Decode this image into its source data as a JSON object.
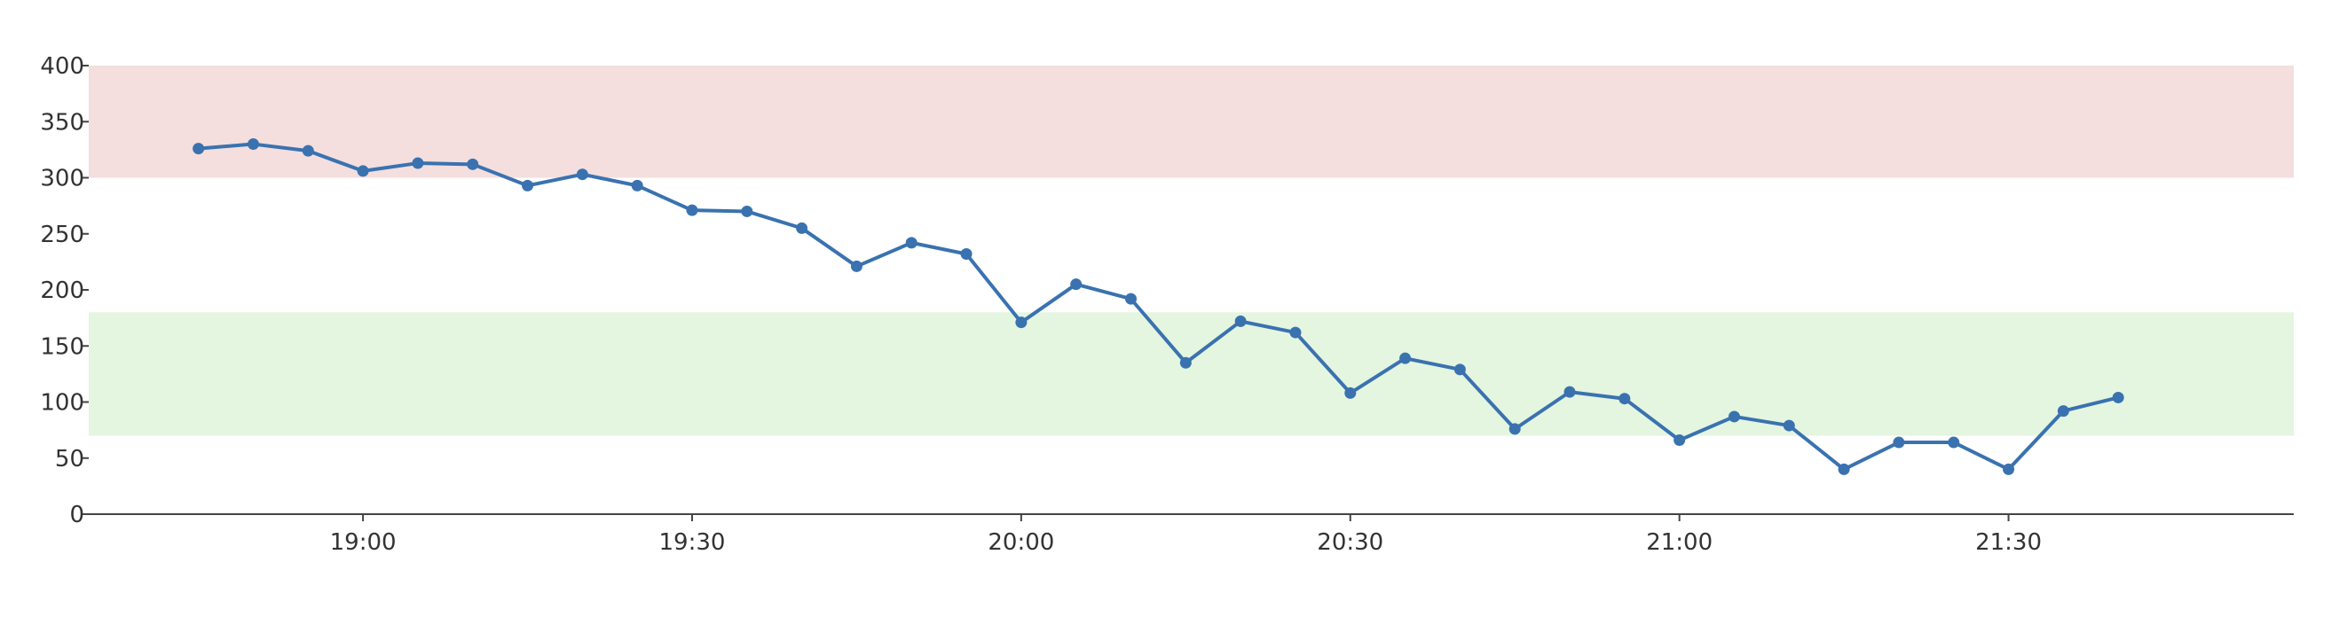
{
  "chart_data": {
    "type": "line",
    "title": "",
    "xlabel": "",
    "ylabel": "",
    "ylim": [
      0,
      400
    ],
    "y_ticks": [
      0,
      50,
      100,
      150,
      200,
      250,
      300,
      350,
      400
    ],
    "y_tick_labels": [
      "0",
      "50",
      "100",
      "150",
      "200",
      "250",
      "300",
      "350",
      "400"
    ],
    "xlim": [
      "18:35",
      "21:56"
    ],
    "x_ticks": [
      "19:00",
      "19:30",
      "20:00",
      "20:30",
      "21:00",
      "21:30"
    ],
    "grid": false,
    "bands": [
      {
        "from": 300,
        "to": 400,
        "color": "#f4dede"
      },
      {
        "from": 70,
        "to": 180,
        "color": "#e4f5e0"
      }
    ],
    "series": [
      {
        "color": "#3a72b0",
        "x": [
          "18:45",
          "18:50",
          "18:55",
          "19:00",
          "19:05",
          "19:10",
          "19:15",
          "19:20",
          "19:25",
          "19:30",
          "19:35",
          "19:40",
          "19:45",
          "19:50",
          "19:55",
          "20:00",
          "20:05",
          "20:10",
          "20:15",
          "20:20",
          "20:25",
          "20:30",
          "20:35",
          "20:40",
          "20:45",
          "20:50",
          "20:55",
          "21:00",
          "21:05",
          "21:10",
          "21:15",
          "21:20",
          "21:25",
          "21:30",
          "21:35",
          "21:40"
        ],
        "values": [
          326,
          330,
          324,
          306,
          313,
          312,
          293,
          303,
          293,
          271,
          270,
          255,
          221,
          242,
          232,
          171,
          205,
          192,
          135,
          172,
          162,
          108,
          139,
          129,
          76,
          109,
          103,
          66,
          87,
          79,
          40,
          64,
          64,
          40,
          92,
          104
        ]
      }
    ]
  }
}
